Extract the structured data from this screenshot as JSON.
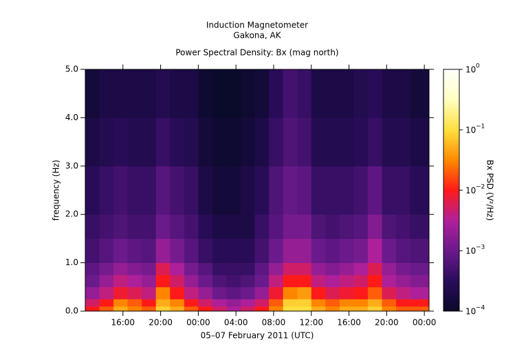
{
  "chart_data": {
    "type": "heatmap",
    "title": "Induction Magnetometer",
    "subtitle": "Gakona, AK",
    "plot_title": "Power Spectral Density: Bx (mag north)",
    "xlabel": "05–07 February 2011 (UTC)",
    "ylabel": "frequency (Hz)",
    "colorbar_label": "Bx PSD (V²/Hz)",
    "x_edges": [
      12,
      13.5,
      15,
      16.5,
      18,
      19.5,
      21,
      22.5,
      24,
      25.5,
      27,
      28.5,
      30,
      31.5,
      33,
      34.5,
      36,
      37.5,
      39,
      40.5,
      42,
      43.5,
      45,
      46.5,
      48.5
    ],
    "y_edges": [
      0,
      0.1,
      0.25,
      0.5,
      0.75,
      1,
      1.5,
      2,
      3,
      4,
      5
    ],
    "z": [
      [
        0.01,
        0.02,
        0.05,
        0.03,
        0.02,
        0.08,
        0.05,
        0.02,
        0.01,
        0.005,
        0.003,
        0.005,
        0.01,
        0.03,
        0.1,
        0.1,
        0.05,
        0.03,
        0.05,
        0.05,
        0.08,
        0.03,
        0.02,
        0.02
      ],
      [
        0.005,
        0.01,
        0.03,
        0.02,
        0.01,
        0.05,
        0.03,
        0.01,
        0.005,
        0.003,
        0.002,
        0.003,
        0.005,
        0.02,
        0.08,
        0.08,
        0.03,
        0.02,
        0.03,
        0.03,
        0.05,
        0.02,
        0.01,
        0.01
      ],
      [
        0.002,
        0.004,
        0.008,
        0.006,
        0.004,
        0.03,
        0.01,
        0.004,
        0.002,
        0.001,
        0.0008,
        0.001,
        0.002,
        0.008,
        0.03,
        0.04,
        0.01,
        0.006,
        0.008,
        0.01,
        0.02,
        0.006,
        0.004,
        0.003
      ],
      [
        0.001,
        0.002,
        0.004,
        0.003,
        0.002,
        0.01,
        0.005,
        0.002,
        0.001,
        0.0006,
        0.0005,
        0.0006,
        0.001,
        0.004,
        0.01,
        0.01,
        0.004,
        0.003,
        0.004,
        0.005,
        0.01,
        0.003,
        0.002,
        0.0015
      ],
      [
        0.0008,
        0.0012,
        0.002,
        0.0015,
        0.0012,
        0.006,
        0.003,
        0.0012,
        0.0007,
        0.0004,
        0.0004,
        0.0004,
        0.0008,
        0.002,
        0.005,
        0.005,
        0.002,
        0.0015,
        0.002,
        0.003,
        0.006,
        0.002,
        0.0012,
        0.001
      ],
      [
        0.0005,
        0.0007,
        0.001,
        0.0008,
        0.0007,
        0.002,
        0.0012,
        0.0007,
        0.0004,
        0.0003,
        0.0003,
        0.0003,
        0.0005,
        0.001,
        0.002,
        0.002,
        0.001,
        0.0008,
        0.001,
        0.0012,
        0.003,
        0.001,
        0.0007,
        0.0006
      ],
      [
        0.0004,
        0.0005,
        0.0006,
        0.0005,
        0.0005,
        0.001,
        0.0007,
        0.0005,
        0.0003,
        0.0002,
        0.0002,
        0.0002,
        0.0004,
        0.0007,
        0.0012,
        0.0012,
        0.0006,
        0.0005,
        0.0006,
        0.0007,
        0.0015,
        0.0006,
        0.0005,
        0.0004
      ],
      [
        0.0003,
        0.0004,
        0.0005,
        0.0004,
        0.0004,
        0.0007,
        0.0005,
        0.0004,
        0.0002,
        0.00015,
        0.00015,
        0.0002,
        0.0003,
        0.0006,
        0.0009,
        0.0008,
        0.0004,
        0.0004,
        0.0004,
        0.0005,
        0.0008,
        0.0004,
        0.0004,
        0.0003
      ],
      [
        0.0002,
        0.00025,
        0.0003,
        0.00025,
        0.00025,
        0.0004,
        0.0003,
        0.00025,
        0.00015,
        0.00012,
        0.00012,
        0.00015,
        0.0002,
        0.0004,
        0.0006,
        0.0005,
        0.00025,
        0.00025,
        0.00025,
        0.0003,
        0.0004,
        0.00025,
        0.00025,
        0.0002
      ],
      [
        0.00015,
        0.0002,
        0.0002,
        0.0002,
        0.0002,
        0.00025,
        0.0002,
        0.0002,
        0.00012,
        0.0001,
        0.0001,
        0.00012,
        0.00015,
        0.0003,
        0.0005,
        0.0004,
        0.0002,
        0.0002,
        0.0002,
        0.00025,
        0.0003,
        0.0002,
        0.0002,
        0.00015
      ]
    ],
    "xlim": [
      12,
      48.5
    ],
    "ylim": [
      0,
      5
    ],
    "xticks": [
      {
        "value": 16,
        "label": "16:00"
      },
      {
        "value": 20,
        "label": "20:00"
      },
      {
        "value": 24,
        "label": "00:00"
      },
      {
        "value": 28,
        "label": "04:00"
      },
      {
        "value": 32,
        "label": "08:00"
      },
      {
        "value": 36,
        "label": "12:00"
      },
      {
        "value": 40,
        "label": "16:00"
      },
      {
        "value": 44,
        "label": "20:00"
      },
      {
        "value": 48,
        "label": "00:00"
      }
    ],
    "yticks": [
      {
        "value": 0,
        "label": "0.0"
      },
      {
        "value": 1,
        "label": "1.0"
      },
      {
        "value": 2,
        "label": "2.0"
      },
      {
        "value": 3,
        "label": "3.0"
      },
      {
        "value": 4,
        "label": "4.0"
      },
      {
        "value": 5,
        "label": "5.0"
      }
    ],
    "zlim": [
      0.0001,
      1
    ],
    "zscale": "log",
    "zticks": [
      {
        "value": 0.0001,
        "label": "10",
        "exponent": "−4"
      },
      {
        "value": 0.001,
        "label": "10",
        "exponent": "−3"
      },
      {
        "value": 0.01,
        "label": "10",
        "exponent": "−2"
      },
      {
        "value": 0.1,
        "label": "10",
        "exponent": "−1"
      },
      {
        "value": 1,
        "label": "10",
        "exponent": "0"
      }
    ],
    "background": "#000000",
    "colorscale": [
      "#0a0a2a",
      "#2a0c5a",
      "#6b1a8c",
      "#b0209a",
      "#ff1a1a",
      "#ff8a00",
      "#ffe040",
      "#ffffc0",
      "#ffffff"
    ]
  }
}
